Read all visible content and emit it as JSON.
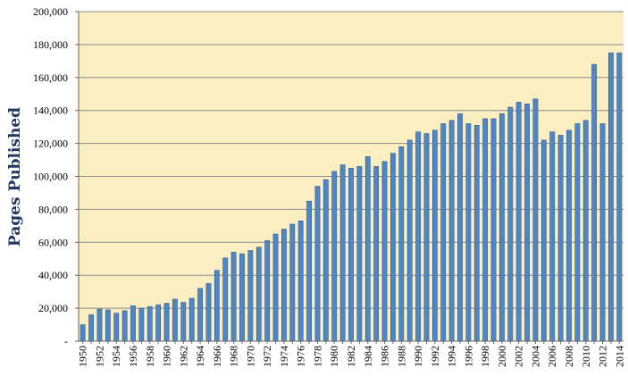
{
  "chart_data": {
    "type": "bar",
    "title": "",
    "xlabel": "",
    "ylabel": "Pages Published",
    "ylim": [
      0,
      200000
    ],
    "yticks": [
      0,
      20000,
      40000,
      60000,
      80000,
      100000,
      120000,
      140000,
      160000,
      180000,
      200000
    ],
    "ytick_labels": [
      "-",
      "20,000",
      "40,000",
      "60,000",
      "80,000",
      "100,000",
      "120,000",
      "140,000",
      "160,000",
      "180,000",
      "200,000"
    ],
    "grid": true,
    "legend": "none",
    "colors": {
      "bar": "#4f86c6",
      "bar_edge": "#2a5a94",
      "plot_bg": "#fbeec1",
      "grid": "#8c8c8c",
      "axis_label": "#1f3864"
    },
    "categories": [
      "1950",
      "1951",
      "1952",
      "1953",
      "1954",
      "1955",
      "1956",
      "1957",
      "1958",
      "1959",
      "1960",
      "1961",
      "1962",
      "1963",
      "1964",
      "1965",
      "1966",
      "1967",
      "1968",
      "1969",
      "1970",
      "1971",
      "1972",
      "1973",
      "1974",
      "1975",
      "1976",
      "1977",
      "1978",
      "1979",
      "1980",
      "1981",
      "1982",
      "1983",
      "1984",
      "1985",
      "1986",
      "1987",
      "1988",
      "1989",
      "1990",
      "1991",
      "1992",
      "1993",
      "1994",
      "1995",
      "1996",
      "1997",
      "1998",
      "1999",
      "2000",
      "2001",
      "2002",
      "2003",
      "2004",
      "2005",
      "2006",
      "2007",
      "2008",
      "2009",
      "2010",
      "2011",
      "2012",
      "2013",
      "2014"
    ],
    "xtick_labels_shown": [
      "1950",
      "1952",
      "1954",
      "1956",
      "1958",
      "1960",
      "1962",
      "1964",
      "1966",
      "1968",
      "1970",
      "1972",
      "1974",
      "1976",
      "1978",
      "1980",
      "1982",
      "1984",
      "1986",
      "1988",
      "1990",
      "1992",
      "1994",
      "1996",
      "1998",
      "2000",
      "2002",
      "2004",
      "2006",
      "2008",
      "2010",
      "2012",
      "2014"
    ],
    "values": [
      10000,
      16000,
      19500,
      19000,
      17000,
      18500,
      21500,
      20000,
      21000,
      22000,
      23000,
      25500,
      23500,
      26000,
      32000,
      35000,
      43000,
      50500,
      54000,
      53000,
      55000,
      57000,
      61000,
      65000,
      68000,
      71000,
      73000,
      85000,
      94000,
      98000,
      103000,
      107000,
      105000,
      106000,
      112000,
      106000,
      109000,
      114000,
      118000,
      122000,
      127000,
      126000,
      128000,
      132000,
      134000,
      138000,
      132000,
      131000,
      135000,
      135000,
      138000,
      142000,
      145000,
      144000,
      147000,
      122000,
      127000,
      125000,
      128000,
      132000,
      134000,
      168000,
      132000,
      175000,
      175000
    ]
  }
}
